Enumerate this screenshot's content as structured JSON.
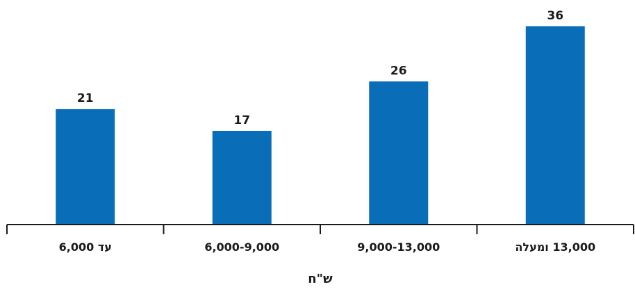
{
  "chart_data": {
    "type": "bar",
    "categories": [
      "עד 6,000",
      "6,000-9,000",
      "9,000-13,000",
      "13,000 ומעלה"
    ],
    "values": [
      21,
      17,
      26,
      36
    ],
    "title": "",
    "xlabel": "ש\"ח",
    "ylabel": "",
    "ylim": [
      0,
      36
    ],
    "grid": false,
    "legend": "none",
    "colors": {
      "bar": "#0a6db7",
      "axis": "#1a1a1a",
      "text": "#1a1a1a"
    }
  }
}
